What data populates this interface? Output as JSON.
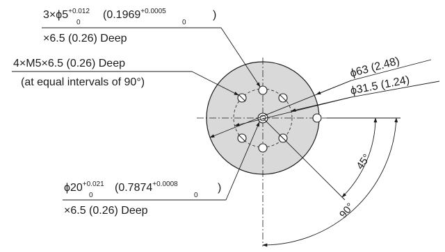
{
  "callouts": {
    "pin_holes": {
      "qty_prefix": "3×ϕ5",
      "tol_upper": "+0.012",
      "tol_lower": "0",
      "inch_open": "(0.1969",
      "inch_tol_upper": "+0.0005",
      "inch_tol_lower": "0",
      "close": ")",
      "depth": "×6.5 (0.26) Deep"
    },
    "tapped_holes": {
      "line1": "4×M5×6.5 (0.26) Deep",
      "line2": "(at equal intervals of 90°)"
    },
    "center_bore": {
      "dia_prefix": "ϕ20",
      "tol_upper": "+0.021",
      "tol_lower": "0",
      "inch_open": "(0.7874",
      "inch_tol_upper": "+0.0008",
      "inch_tol_lower": "0",
      "close": ")",
      "depth": "×6.5 (0.26) Deep"
    },
    "outer_dia": "ϕ63 (2.48)",
    "pcd": "ϕ31.5 (1.24)"
  },
  "angles": {
    "small": "45°",
    "large": "90°"
  },
  "colors": {
    "line": "#1a1a1a",
    "face_fill": "#d9d9d9",
    "background": "#ffffff"
  }
}
